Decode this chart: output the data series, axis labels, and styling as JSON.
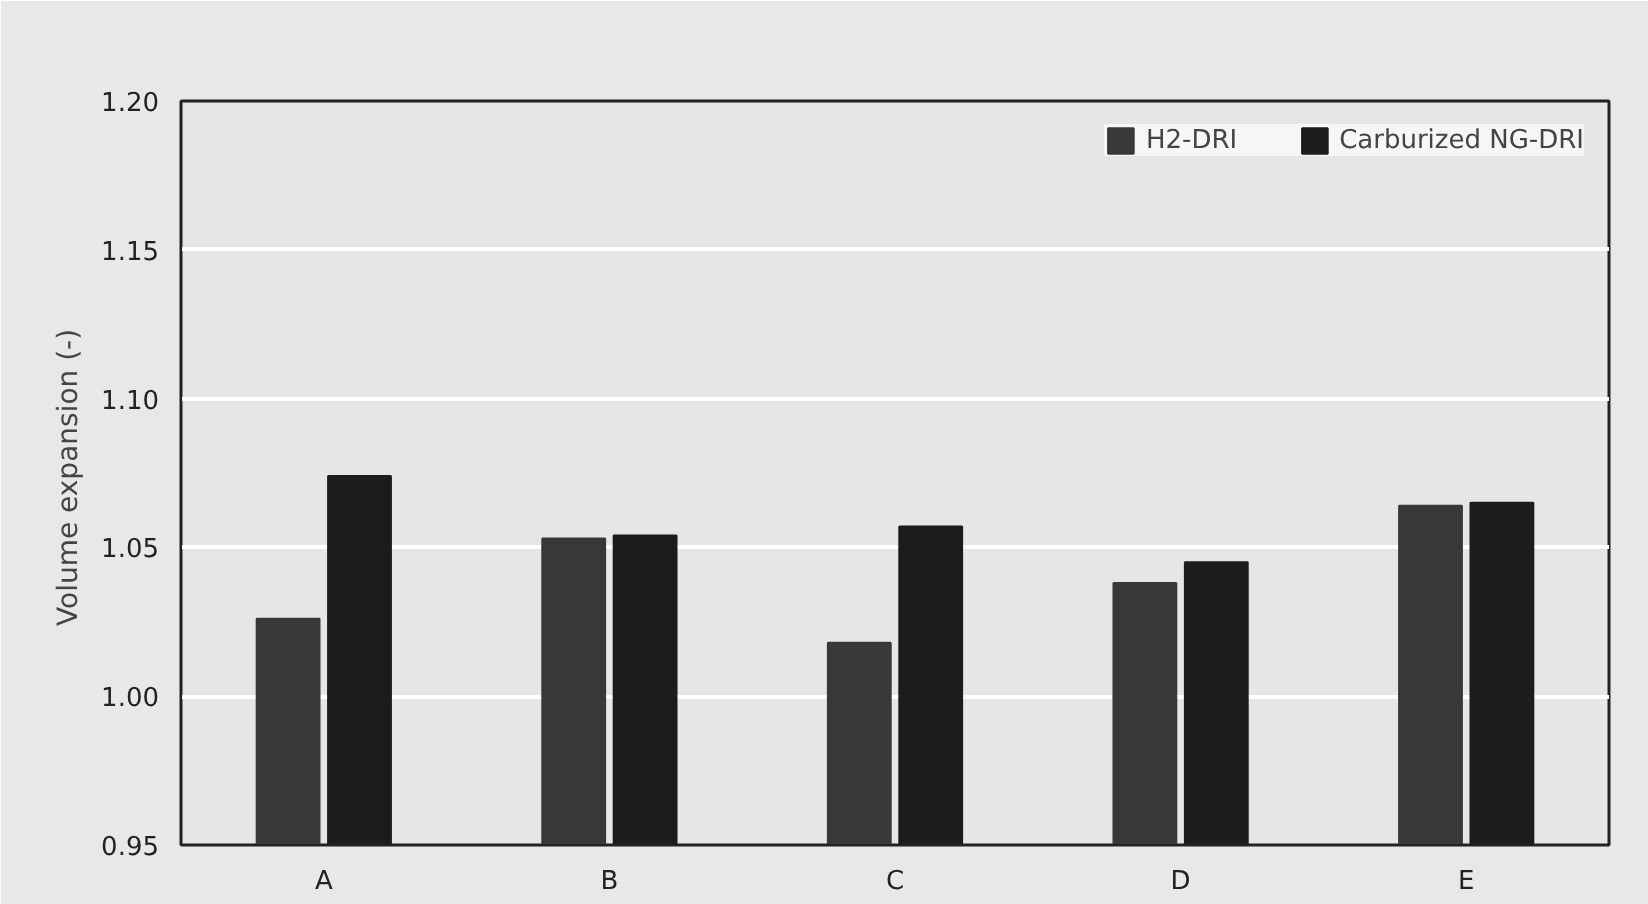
{
  "chart_data": {
    "type": "bar",
    "ylabel": "Volume expansion  (-)",
    "categories": [
      "A",
      "B",
      "C",
      "D",
      "E"
    ],
    "series": [
      {
        "name": "H2-DRI",
        "color": "#383838",
        "values": [
          1.026,
          1.053,
          1.018,
          1.038,
          1.064
        ]
      },
      {
        "name": "Carburized NG-DRI",
        "color": "#1c1c1c",
        "values": [
          1.074,
          1.054,
          1.057,
          1.045,
          1.065
        ]
      }
    ],
    "ylim": [
      0.95,
      1.2
    ],
    "yticks": [
      {
        "value": 0.95,
        "label": "0.95"
      },
      {
        "value": 1.0,
        "label": "1.00"
      },
      {
        "value": 1.05,
        "label": "1.05"
      },
      {
        "value": 1.1,
        "label": "1.10"
      },
      {
        "value": 1.15,
        "label": "1.15"
      },
      {
        "value": 1.2,
        "label": "1.20"
      }
    ],
    "grid": "y",
    "legend": "top right"
  }
}
